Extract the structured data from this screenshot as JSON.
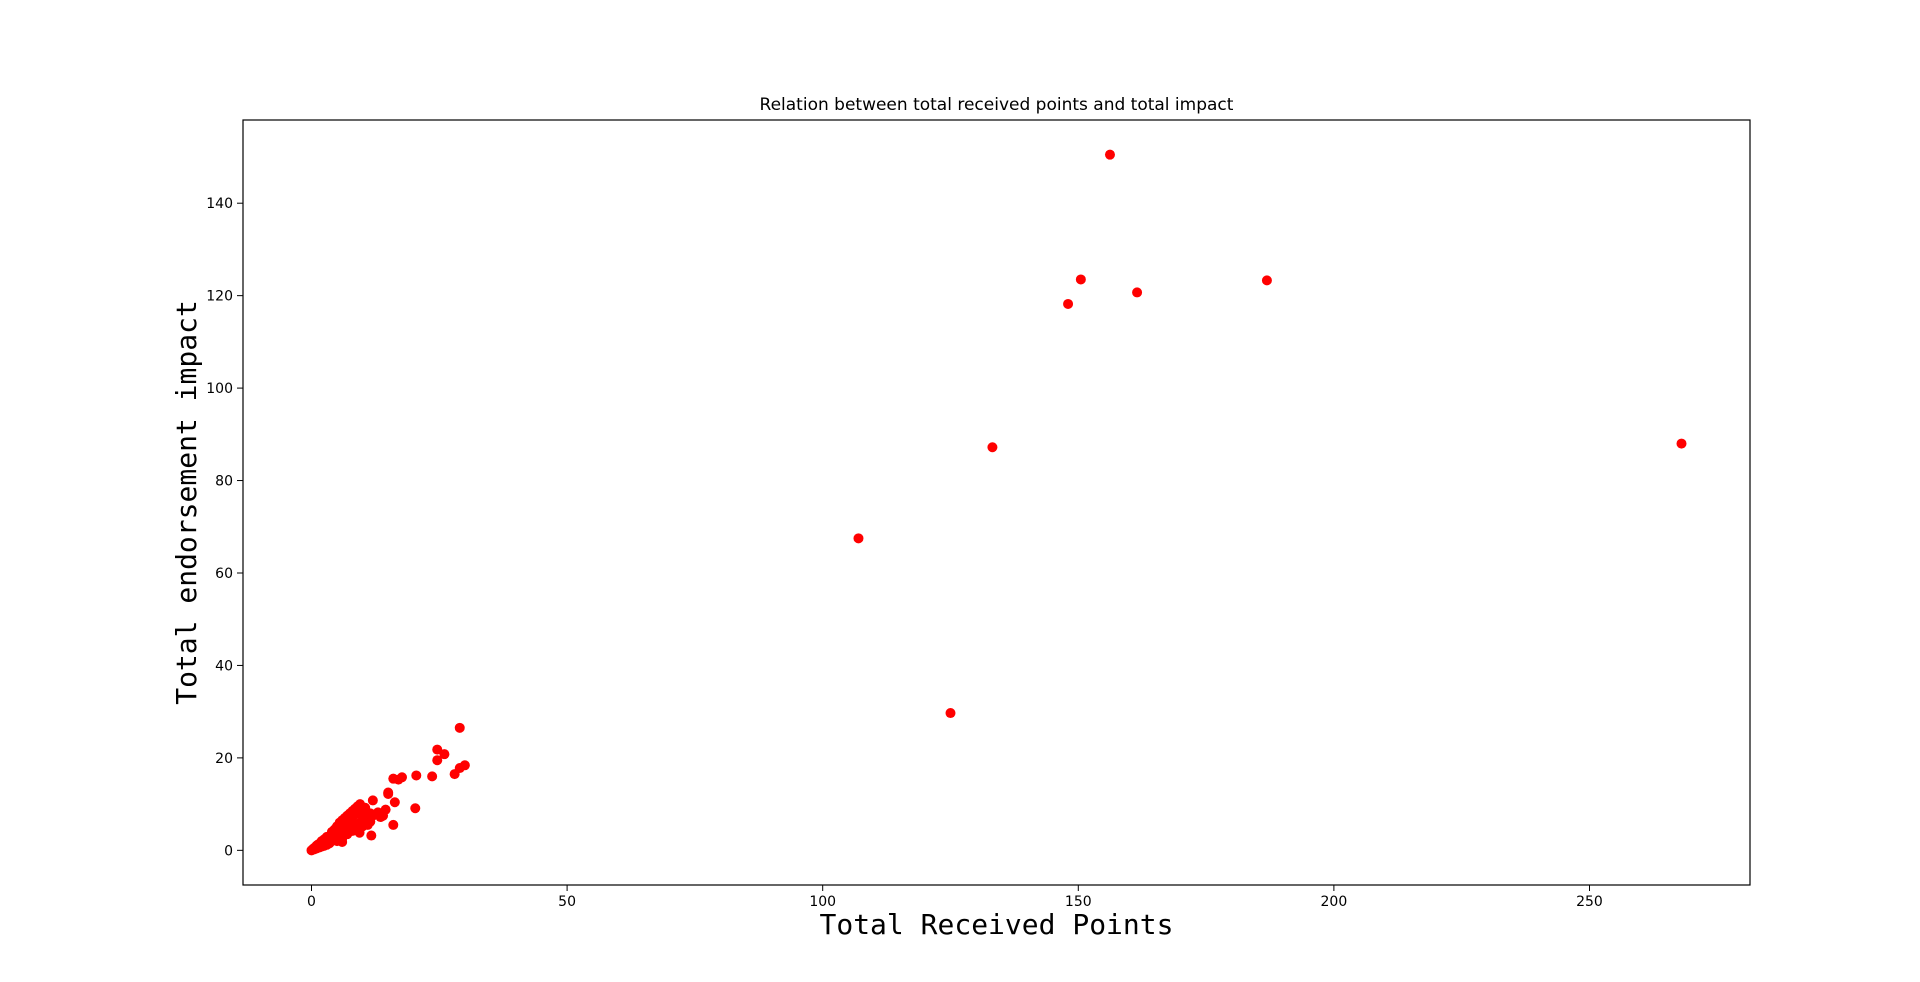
{
  "chart_data": {
    "type": "scatter",
    "title": "Relation between total received points and total impact",
    "xlabel": "Total Received Points",
    "ylabel": "Total endorsement impact",
    "xlim": [
      -13.4,
      281.4
    ],
    "ylim": [
      -7.5,
      158
    ],
    "xticks": [
      0,
      50,
      100,
      150,
      200,
      250
    ],
    "yticks": [
      0,
      20,
      40,
      60,
      80,
      100,
      120,
      140
    ],
    "grid": false,
    "legend": "none",
    "marker_color": "#ff0000",
    "series": [
      {
        "x": [
          0,
          0.3,
          0.5,
          0.8,
          1,
          1.2,
          1.5,
          1.8,
          2,
          2.2,
          2.5,
          2.8,
          3,
          0.5,
          1,
          1.5,
          2,
          2.5,
          3,
          3.5,
          4,
          4,
          4.5,
          5,
          5,
          5.5,
          5.5,
          6,
          6,
          6.5,
          6.5,
          7,
          7,
          7.5,
          7.5,
          8,
          8,
          8.5,
          8.5,
          9,
          9,
          9.5,
          9.5,
          10,
          10,
          10.5,
          10.5,
          11,
          11.5,
          12,
          12,
          12.5,
          13,
          13.5,
          14,
          14.5,
          15,
          5,
          5.5,
          6,
          6.5,
          7,
          7.5,
          8,
          8.5,
          9,
          9.5,
          10,
          10.5,
          11,
          11.5,
          3.5,
          4.5,
          6,
          8,
          11.7,
          9.4,
          15,
          16,
          16,
          16.3,
          17,
          17.7,
          20.5,
          20.3,
          23.6,
          24.6,
          24.6,
          26,
          28,
          29,
          29,
          30
        ],
        "y": [
          0,
          0.3,
          0.5,
          0.7,
          1,
          1.2,
          1.4,
          1.7,
          2,
          2.1,
          2.4,
          2.6,
          2.9,
          0.2,
          0.4,
          0.6,
          0.8,
          1,
          1.2,
          2.5,
          3,
          4,
          4.5,
          4,
          5.2,
          4.5,
          6,
          5.5,
          6.5,
          6,
          7,
          6.5,
          7.5,
          7,
          8,
          7.2,
          8.5,
          7.8,
          9,
          8,
          9.5,
          8.5,
          10,
          9,
          7.5,
          8,
          9.2,
          7,
          8,
          7.5,
          10.8,
          7.8,
          8.2,
          7.2,
          7.5,
          8.8,
          12.2,
          2,
          3,
          2.5,
          4,
          3.5,
          5,
          4.2,
          5.5,
          4.8,
          6,
          5.2,
          6.5,
          5.5,
          6.2,
          1.5,
          2.2,
          1.8,
          4.5,
          3.2,
          3.8,
          12.5,
          15.5,
          5.5,
          10.4,
          15.3,
          15.8,
          16.2,
          9.1,
          16,
          19.5,
          21.8,
          20.8,
          16.5,
          17.8,
          26.5,
          18.4
        ],
        "color": "#ff0000"
      },
      {
        "x": [
          107,
          125,
          133.2,
          148,
          150.5,
          156.2,
          161.5,
          186.9,
          268
        ],
        "y": [
          67.5,
          29.7,
          87.2,
          118.2,
          123.5,
          150.5,
          120.7,
          123.3,
          88
        ],
        "color": "#ff0000"
      }
    ]
  }
}
